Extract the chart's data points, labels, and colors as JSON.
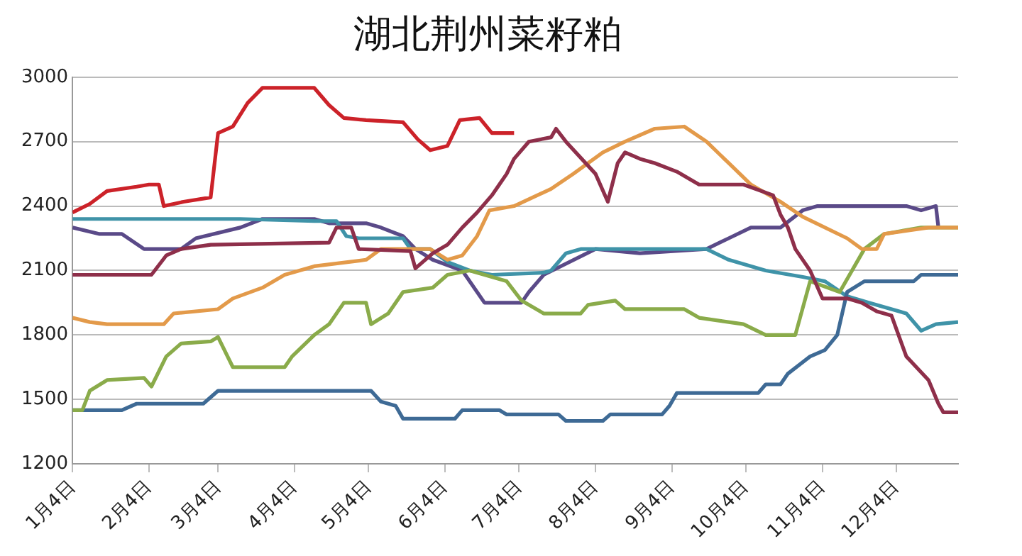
{
  "chart_data": {
    "type": "line",
    "title": "湖北荆州菜籽粕",
    "grid": "y",
    "legend": false,
    "xlim": [
      "--01-04",
      "--12-29"
    ],
    "xticks": [
      {
        "value": "--01-04",
        "label": "1月4日"
      },
      {
        "value": "--02-04",
        "label": "2月4日"
      },
      {
        "value": "--03-04",
        "label": "3月4日"
      },
      {
        "value": "--04-04",
        "label": "4月4日"
      },
      {
        "value": "--05-04",
        "label": "5月4日"
      },
      {
        "value": "--06-04",
        "label": "6月4日"
      },
      {
        "value": "--07-04",
        "label": "7月4日"
      },
      {
        "value": "--08-04",
        "label": "8月4日"
      },
      {
        "value": "--09-04",
        "label": "9月4日"
      },
      {
        "value": "--10-04",
        "label": "10月4日"
      },
      {
        "value": "--11-04",
        "label": "11月4日"
      },
      {
        "value": "--12-04",
        "label": "12月4日"
      }
    ],
    "ylim": [
      1200,
      3000
    ],
    "yticks": [
      1200,
      1500,
      1800,
      2100,
      2400,
      2700,
      3000
    ],
    "series": [
      {
        "color": "#cc2229",
        "x": [
          "--01-04",
          "--01-11",
          "--01-18",
          "--01-30",
          "--02-04",
          "--02-08",
          "--02-10",
          "--02-18",
          "--03-01",
          "--03-04",
          "--03-10",
          "--03-16",
          "--03-22",
          "--04-12",
          "--04-18",
          "--04-24",
          "--05-03",
          "--05-18",
          "--05-24",
          "--05-29",
          "--06-05",
          "--06-10",
          "--06-18",
          "--06-23",
          "--07-02"
        ],
        "values": [
          2370,
          2410,
          2470,
          2490,
          2500,
          2500,
          2400,
          2420,
          2440,
          2740,
          2770,
          2880,
          2950,
          2950,
          2870,
          2810,
          2800,
          2790,
          2710,
          2660,
          2680,
          2800,
          2810,
          2740,
          2740
        ]
      },
      {
        "color": "#8e2f4a",
        "x": [
          "--01-04",
          "--02-05",
          "--02-11",
          "--02-17",
          "--03-01",
          "--04-18",
          "--04-21",
          "--04-27",
          "--04-30",
          "--05-21",
          "--05-23",
          "--05-30",
          "--06-05",
          "--06-11",
          "--06-17",
          "--06-23",
          "--06-29",
          "--07-02",
          "--07-08",
          "--07-17",
          "--07-19",
          "--07-23",
          "--08-04",
          "--08-09",
          "--08-13",
          "--08-16",
          "--08-22",
          "--08-28",
          "--09-06",
          "--09-15",
          "--10-03",
          "--10-15",
          "--10-18",
          "--10-21",
          "--10-24",
          "--10-30",
          "--11-04",
          "--11-14",
          "--11-20",
          "--11-26",
          "--12-02",
          "--12-08",
          "--12-17",
          "--12-21",
          "--12-23",
          "--12-29"
        ],
        "values": [
          2080,
          2080,
          2170,
          2200,
          2220,
          2230,
          2300,
          2300,
          2200,
          2190,
          2110,
          2180,
          2220,
          2300,
          2370,
          2450,
          2550,
          2620,
          2700,
          2720,
          2760,
          2700,
          2550,
          2420,
          2600,
          2650,
          2620,
          2600,
          2560,
          2500,
          2500,
          2450,
          2360,
          2300,
          2200,
          2100,
          1970,
          1970,
          1950,
          1910,
          1890,
          1700,
          1590,
          1480,
          1440,
          1440
        ]
      },
      {
        "color": "#e39a4a",
        "x": [
          "--01-04",
          "--01-11",
          "--01-18",
          "--02-10",
          "--02-14",
          "--03-04",
          "--03-10",
          "--03-22",
          "--03-31",
          "--04-12",
          "--05-03",
          "--05-09",
          "--05-29",
          "--06-05",
          "--06-11",
          "--06-17",
          "--06-22",
          "--07-02",
          "--07-17",
          "--07-26",
          "--08-07",
          "--08-16",
          "--08-28",
          "--09-09",
          "--09-18",
          "--09-27",
          "--10-06",
          "--10-18",
          "--10-27",
          "--11-14",
          "--11-20",
          "--11-26",
          "--11-29",
          "--12-17",
          "--12-29"
        ],
        "values": [
          1880,
          1860,
          1850,
          1850,
          1900,
          1920,
          1970,
          2020,
          2080,
          2120,
          2150,
          2200,
          2200,
          2150,
          2170,
          2260,
          2380,
          2400,
          2480,
          2550,
          2650,
          2700,
          2760,
          2770,
          2700,
          2600,
          2500,
          2420,
          2350,
          2250,
          2200,
          2200,
          2270,
          2300,
          2300
        ]
      },
      {
        "color": "#8aab4a",
        "x": [
          "--01-04",
          "--01-08",
          "--01-11",
          "--01-18",
          "--02-02",
          "--02-05",
          "--02-11",
          "--02-17",
          "--03-01",
          "--03-04",
          "--03-10",
          "--03-31",
          "--04-03",
          "--04-12",
          "--04-18",
          "--04-24",
          "--05-03",
          "--05-05",
          "--05-12",
          "--05-18",
          "--05-30",
          "--06-05",
          "--06-14",
          "--06-29",
          "--07-05",
          "--07-14",
          "--07-29",
          "--08-01",
          "--08-12",
          "--08-16",
          "--09-09",
          "--09-15",
          "--10-03",
          "--10-12",
          "--10-24",
          "--10-30",
          "--11-11",
          "--11-21",
          "--11-29",
          "--12-14",
          "--12-29"
        ],
        "values": [
          1450,
          1450,
          1540,
          1590,
          1600,
          1560,
          1700,
          1760,
          1770,
          1790,
          1650,
          1650,
          1700,
          1800,
          1850,
          1950,
          1950,
          1850,
          1900,
          2000,
          2020,
          2080,
          2100,
          2050,
          1960,
          1900,
          1900,
          1940,
          1960,
          1920,
          1920,
          1880,
          1850,
          1800,
          1800,
          2050,
          2000,
          2200,
          2270,
          2300,
          2300
        ]
      },
      {
        "color": "#3e6a95",
        "x": [
          "--01-04",
          "--01-24",
          "--01-30",
          "--02-26",
          "--03-04",
          "--05-05",
          "--05-09",
          "--05-15",
          "--05-18",
          "--06-08",
          "--06-11",
          "--06-26",
          "--06-29",
          "--07-20",
          "--07-23",
          "--08-07",
          "--08-10",
          "--08-31",
          "--09-03",
          "--09-06",
          "--10-09",
          "--10-12",
          "--10-18",
          "--10-21",
          "--10-30",
          "--11-05",
          "--11-10",
          "--11-14",
          "--11-21",
          "--12-11",
          "--12-14",
          "--12-29"
        ],
        "values": [
          1450,
          1450,
          1480,
          1480,
          1540,
          1540,
          1490,
          1470,
          1410,
          1410,
          1450,
          1450,
          1430,
          1430,
          1400,
          1400,
          1430,
          1430,
          1470,
          1530,
          1530,
          1570,
          1570,
          1620,
          1700,
          1730,
          1800,
          2000,
          2050,
          2050,
          2080,
          2080
        ]
      },
      {
        "color": "#3f93a8",
        "x": [
          "--01-04",
          "--03-13",
          "--04-12",
          "--04-21",
          "--04-25",
          "--04-30",
          "--05-18",
          "--05-21",
          "--05-29",
          "--06-05",
          "--06-14",
          "--06-23",
          "--07-14",
          "--07-17",
          "--07-23",
          "--07-29",
          "--09-18",
          "--09-27",
          "--10-12",
          "--10-27",
          "--11-05",
          "--11-14",
          "--11-23",
          "--12-08",
          "--12-14",
          "--12-20",
          "--12-29"
        ],
        "values": [
          2340,
          2340,
          2330,
          2330,
          2260,
          2250,
          2250,
          2200,
          2200,
          2140,
          2100,
          2080,
          2090,
          2100,
          2180,
          2200,
          2200,
          2150,
          2100,
          2070,
          2050,
          1980,
          1950,
          1900,
          1820,
          1850,
          1860
        ]
      },
      {
        "color": "#5a4a88",
        "x": [
          "--01-04",
          "--01-15",
          "--01-24",
          "--02-02",
          "--02-17",
          "--02-23",
          "--03-13",
          "--03-22",
          "--04-12",
          "--04-18",
          "--05-03",
          "--05-09",
          "--05-18",
          "--05-23",
          "--05-30",
          "--06-11",
          "--06-20",
          "--07-05",
          "--07-08",
          "--07-14",
          "--08-04",
          "--08-22",
          "--09-18",
          "--09-27",
          "--10-06",
          "--10-18",
          "--10-27",
          "--11-02",
          "--12-08",
          "--12-14",
          "--12-20",
          "--12-21"
        ],
        "values": [
          2300,
          2270,
          2270,
          2200,
          2200,
          2250,
          2300,
          2340,
          2340,
          2320,
          2320,
          2300,
          2260,
          2200,
          2150,
          2100,
          1950,
          1950,
          2000,
          2080,
          2200,
          2180,
          2200,
          2250,
          2300,
          2300,
          2380,
          2400,
          2400,
          2380,
          2400,
          2300
        ]
      }
    ]
  }
}
